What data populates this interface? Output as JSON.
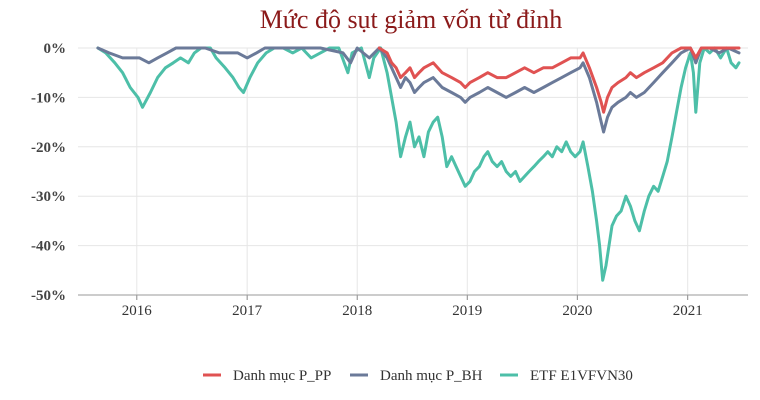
{
  "chart_data": {
    "type": "line",
    "title": "Mức độ sụt giảm vốn từ đỉnh",
    "xlabel": "",
    "ylabel": "",
    "x_ticks": [
      "2016",
      "2017",
      "2018",
      "2019",
      "2020",
      "2021"
    ],
    "y_ticks": [
      "0%",
      "-10%",
      "-20%",
      "-30%",
      "-40%",
      "-50%"
    ],
    "ylim": [
      -50,
      0
    ],
    "xlim": [
      "2015-06-20",
      "2021-07-20"
    ],
    "grid": true,
    "legend_position": "bottom",
    "series": [
      {
        "name": "ETF E1VFVN30",
        "color": "#4dbfa8",
        "points": [
          [
            "2015-08-25",
            0
          ],
          [
            "2015-09-20",
            -1
          ],
          [
            "2015-10-20",
            -3
          ],
          [
            "2015-11-15",
            -5
          ],
          [
            "2015-12-10",
            -8
          ],
          [
            "2016-01-05",
            -10
          ],
          [
            "2016-01-20",
            -12
          ],
          [
            "2016-02-15",
            -9
          ],
          [
            "2016-03-10",
            -6
          ],
          [
            "2016-04-05",
            -4
          ],
          [
            "2016-05-01",
            -3
          ],
          [
            "2016-05-25",
            -2
          ],
          [
            "2016-06-20",
            -3
          ],
          [
            "2016-07-10",
            -1
          ],
          [
            "2016-08-01",
            0
          ],
          [
            "2016-09-01",
            0
          ],
          [
            "2016-09-20",
            -2
          ],
          [
            "2016-10-20",
            -4
          ],
          [
            "2016-11-15",
            -6
          ],
          [
            "2016-12-05",
            -8
          ],
          [
            "2016-12-20",
            -9
          ],
          [
            "2017-01-10",
            -6
          ],
          [
            "2017-02-05",
            -3
          ],
          [
            "2017-03-05",
            -1
          ],
          [
            "2017-04-01",
            0
          ],
          [
            "2017-05-01",
            0
          ],
          [
            "2017-06-01",
            -1
          ],
          [
            "2017-07-01",
            0
          ],
          [
            "2017-08-01",
            -2
          ],
          [
            "2017-09-01",
            -1
          ],
          [
            "2017-10-01",
            0
          ],
          [
            "2017-11-01",
            0
          ],
          [
            "2017-12-01",
            -5
          ],
          [
            "2017-12-15",
            -1
          ],
          [
            "2018-01-15",
            0
          ],
          [
            "2018-02-10",
            -6
          ],
          [
            "2018-02-25",
            -2
          ],
          [
            "2018-03-20",
            0
          ],
          [
            "2018-04-10",
            -5
          ],
          [
            "2018-04-25",
            -10
          ],
          [
            "2018-05-10",
            -15
          ],
          [
            "2018-05-25",
            -22
          ],
          [
            "2018-06-10",
            -18
          ],
          [
            "2018-06-25",
            -15
          ],
          [
            "2018-07-10",
            -20
          ],
          [
            "2018-07-25",
            -18
          ],
          [
            "2018-08-10",
            -22
          ],
          [
            "2018-08-25",
            -17
          ],
          [
            "2018-09-10",
            -15
          ],
          [
            "2018-09-25",
            -14
          ],
          [
            "2018-10-10",
            -18
          ],
          [
            "2018-10-25",
            -24
          ],
          [
            "2018-11-10",
            -22
          ],
          [
            "2018-11-25",
            -24
          ],
          [
            "2018-12-10",
            -26
          ],
          [
            "2018-12-25",
            -28
          ],
          [
            "2019-01-10",
            -27
          ],
          [
            "2019-01-25",
            -25
          ],
          [
            "2019-02-10",
            -24
          ],
          [
            "2019-02-25",
            -22
          ],
          [
            "2019-03-10",
            -21
          ],
          [
            "2019-03-25",
            -23
          ],
          [
            "2019-04-10",
            -24
          ],
          [
            "2019-04-25",
            -23
          ],
          [
            "2019-05-10",
            -25
          ],
          [
            "2019-05-25",
            -26
          ],
          [
            "2019-06-10",
            -25
          ],
          [
            "2019-06-25",
            -27
          ],
          [
            "2019-07-10",
            -26
          ],
          [
            "2019-07-25",
            -25
          ],
          [
            "2019-08-10",
            -24
          ],
          [
            "2019-08-25",
            -23
          ],
          [
            "2019-09-10",
            -22
          ],
          [
            "2019-09-25",
            -21
          ],
          [
            "2019-10-10",
            -22
          ],
          [
            "2019-10-25",
            -20
          ],
          [
            "2019-11-10",
            -21
          ],
          [
            "2019-11-25",
            -19
          ],
          [
            "2019-12-10",
            -21
          ],
          [
            "2019-12-25",
            -22
          ],
          [
            "2020-01-10",
            -21
          ],
          [
            "2020-01-20",
            -19
          ],
          [
            "2020-02-05",
            -24
          ],
          [
            "2020-02-20",
            -29
          ],
          [
            "2020-03-05",
            -35
          ],
          [
            "2020-03-15",
            -40
          ],
          [
            "2020-03-25",
            -47
          ],
          [
            "2020-04-05",
            -44
          ],
          [
            "2020-04-15",
            -40
          ],
          [
            "2020-04-25",
            -36
          ],
          [
            "2020-05-10",
            -34
          ],
          [
            "2020-05-25",
            -33
          ],
          [
            "2020-06-10",
            -30
          ],
          [
            "2020-06-25",
            -32
          ],
          [
            "2020-07-10",
            -35
          ],
          [
            "2020-07-25",
            -37
          ],
          [
            "2020-08-10",
            -33
          ],
          [
            "2020-08-25",
            -30
          ],
          [
            "2020-09-10",
            -28
          ],
          [
            "2020-09-25",
            -29
          ],
          [
            "2020-10-10",
            -26
          ],
          [
            "2020-10-25",
            -23
          ],
          [
            "2020-11-10",
            -18
          ],
          [
            "2020-11-25",
            -13
          ],
          [
            "2020-12-10",
            -8
          ],
          [
            "2020-12-25",
            -4
          ],
          [
            "2021-01-10",
            -1
          ],
          [
            "2021-01-20",
            -5
          ],
          [
            "2021-01-28",
            -13
          ],
          [
            "2021-02-10",
            -3
          ],
          [
            "2021-02-25",
            0
          ],
          [
            "2021-03-15",
            -1
          ],
          [
            "2021-04-01",
            0
          ],
          [
            "2021-04-20",
            -2
          ],
          [
            "2021-05-10",
            0
          ],
          [
            "2021-05-25",
            -3
          ],
          [
            "2021-06-10",
            -4
          ],
          [
            "2021-06-20",
            -3
          ]
        ]
      },
      {
        "name": "Danh mục P_BH",
        "color": "#6b7a99",
        "points": [
          [
            "2015-08-25",
            0
          ],
          [
            "2015-10-01",
            -1
          ],
          [
            "2015-11-15",
            -2
          ],
          [
            "2016-01-10",
            -2
          ],
          [
            "2016-02-10",
            -3
          ],
          [
            "2016-03-10",
            -2
          ],
          [
            "2016-04-10",
            -1
          ],
          [
            "2016-05-10",
            0
          ],
          [
            "2016-07-01",
            0
          ],
          [
            "2016-08-15",
            0
          ],
          [
            "2016-10-01",
            -1
          ],
          [
            "2016-12-01",
            -1
          ],
          [
            "2017-01-01",
            -2
          ],
          [
            "2017-02-01",
            -1
          ],
          [
            "2017-03-01",
            0
          ],
          [
            "2017-06-01",
            0
          ],
          [
            "2017-09-01",
            0
          ],
          [
            "2017-11-15",
            -1
          ],
          [
            "2017-12-10",
            -3
          ],
          [
            "2018-01-01",
            0
          ],
          [
            "2018-02-10",
            -2
          ],
          [
            "2018-03-15",
            0
          ],
          [
            "2018-04-10",
            -2
          ],
          [
            "2018-04-25",
            -4
          ],
          [
            "2018-05-10",
            -6
          ],
          [
            "2018-05-25",
            -8
          ],
          [
            "2018-06-10",
            -6
          ],
          [
            "2018-06-25",
            -7
          ],
          [
            "2018-07-10",
            -9
          ],
          [
            "2018-07-25",
            -8
          ],
          [
            "2018-08-10",
            -7
          ],
          [
            "2018-09-10",
            -6
          ],
          [
            "2018-10-10",
            -8
          ],
          [
            "2018-11-10",
            -9
          ],
          [
            "2018-12-10",
            -10
          ],
          [
            "2018-12-25",
            -11
          ],
          [
            "2019-01-10",
            -10
          ],
          [
            "2019-02-10",
            -9
          ],
          [
            "2019-03-10",
            -8
          ],
          [
            "2019-04-10",
            -9
          ],
          [
            "2019-05-10",
            -10
          ],
          [
            "2019-06-10",
            -9
          ],
          [
            "2019-07-10",
            -8
          ],
          [
            "2019-08-10",
            -9
          ],
          [
            "2019-09-10",
            -8
          ],
          [
            "2019-10-10",
            -7
          ],
          [
            "2019-11-10",
            -6
          ],
          [
            "2019-12-10",
            -5
          ],
          [
            "2020-01-10",
            -4
          ],
          [
            "2020-01-20",
            -3
          ],
          [
            "2020-02-10",
            -6
          ],
          [
            "2020-03-05",
            -11
          ],
          [
            "2020-03-20",
            -15
          ],
          [
            "2020-03-28",
            -17
          ],
          [
            "2020-04-10",
            -14
          ],
          [
            "2020-04-25",
            -12
          ],
          [
            "2020-05-15",
            -11
          ],
          [
            "2020-06-10",
            -10
          ],
          [
            "2020-06-25",
            -9
          ],
          [
            "2020-07-15",
            -10
          ],
          [
            "2020-08-10",
            -9
          ],
          [
            "2020-09-10",
            -7
          ],
          [
            "2020-10-10",
            -5
          ],
          [
            "2020-11-10",
            -3
          ],
          [
            "2020-12-10",
            -1
          ],
          [
            "2021-01-10",
            0
          ],
          [
            "2021-01-28",
            -3
          ],
          [
            "2021-02-15",
            0
          ],
          [
            "2021-03-15",
            0
          ],
          [
            "2021-04-15",
            -1
          ],
          [
            "2021-05-15",
            0
          ],
          [
            "2021-06-20",
            -1
          ]
        ]
      },
      {
        "name": "Danh mục P_PP",
        "color": "#e05252",
        "points": [
          [
            "2018-03-15",
            0
          ],
          [
            "2018-04-10",
            -1
          ],
          [
            "2018-04-25",
            -3
          ],
          [
            "2018-05-10",
            -4
          ],
          [
            "2018-05-25",
            -6
          ],
          [
            "2018-06-10",
            -5
          ],
          [
            "2018-06-25",
            -4
          ],
          [
            "2018-07-10",
            -6
          ],
          [
            "2018-07-25",
            -5
          ],
          [
            "2018-08-10",
            -4
          ],
          [
            "2018-09-10",
            -3
          ],
          [
            "2018-10-10",
            -5
          ],
          [
            "2018-11-10",
            -6
          ],
          [
            "2018-12-10",
            -7
          ],
          [
            "2018-12-25",
            -8
          ],
          [
            "2019-01-10",
            -7
          ],
          [
            "2019-02-10",
            -6
          ],
          [
            "2019-03-10",
            -5
          ],
          [
            "2019-04-10",
            -6
          ],
          [
            "2019-05-10",
            -6
          ],
          [
            "2019-06-10",
            -5
          ],
          [
            "2019-07-10",
            -4
          ],
          [
            "2019-08-10",
            -5
          ],
          [
            "2019-09-10",
            -4
          ],
          [
            "2019-10-10",
            -4
          ],
          [
            "2019-11-10",
            -3
          ],
          [
            "2019-12-10",
            -2
          ],
          [
            "2020-01-10",
            -2
          ],
          [
            "2020-01-20",
            -1
          ],
          [
            "2020-02-10",
            -4
          ],
          [
            "2020-03-05",
            -8
          ],
          [
            "2020-03-20",
            -11
          ],
          [
            "2020-03-28",
            -13
          ],
          [
            "2020-04-10",
            -10
          ],
          [
            "2020-04-25",
            -8
          ],
          [
            "2020-05-15",
            -7
          ],
          [
            "2020-06-10",
            -6
          ],
          [
            "2020-06-25",
            -5
          ],
          [
            "2020-07-15",
            -6
          ],
          [
            "2020-08-10",
            -5
          ],
          [
            "2020-09-10",
            -4
          ],
          [
            "2020-10-10",
            -3
          ],
          [
            "2020-11-10",
            -1
          ],
          [
            "2020-12-10",
            0
          ],
          [
            "2021-01-10",
            0
          ],
          [
            "2021-01-28",
            -2
          ],
          [
            "2021-02-15",
            0
          ],
          [
            "2021-04-15",
            0
          ],
          [
            "2021-06-20",
            0
          ]
        ]
      }
    ],
    "legend": [
      {
        "label": "Danh mục P_PP",
        "color": "#e05252"
      },
      {
        "label": "Danh mục P_BH",
        "color": "#6b7a99"
      },
      {
        "label": "ETF E1VFVN30",
        "color": "#4dbfa8"
      }
    ]
  }
}
